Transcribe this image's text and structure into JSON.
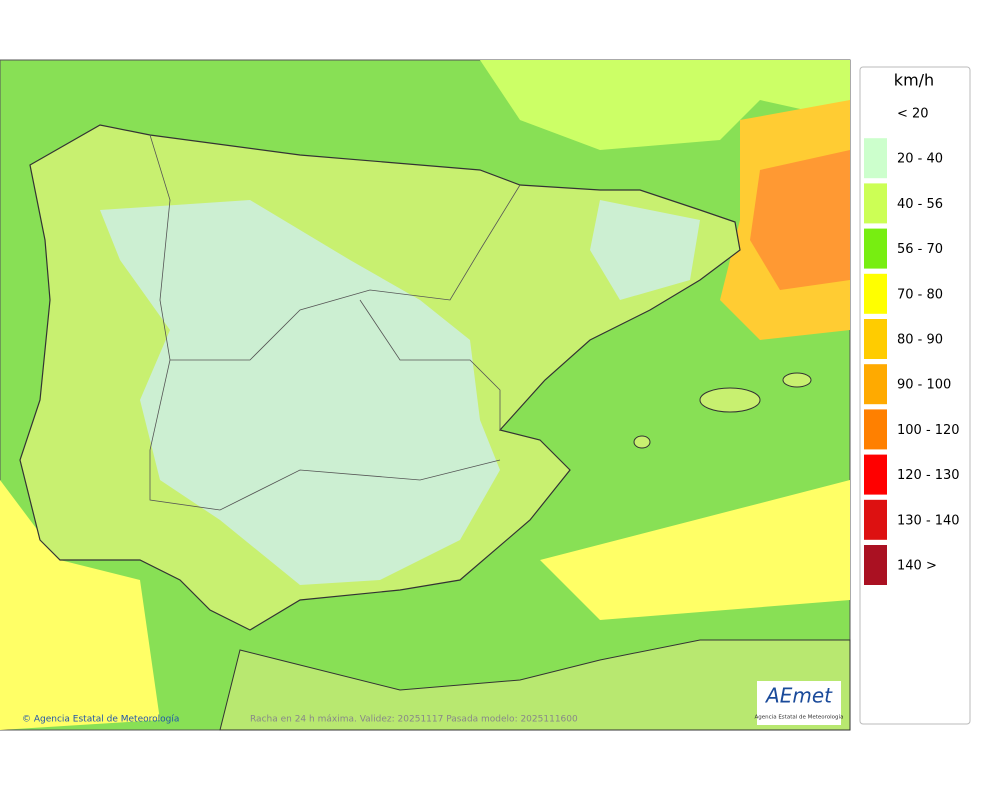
{
  "legend": {
    "title": "km/h",
    "items": [
      {
        "label": "< 20",
        "color": null
      },
      {
        "label": "20 - 40",
        "color": "#ccffcc"
      },
      {
        "label": "40 - 56",
        "color": "#ccff55"
      },
      {
        "label": "56 - 70",
        "color": "#77ee11"
      },
      {
        "label": "70 - 80",
        "color": "#ffff00"
      },
      {
        "label": "80 - 90",
        "color": "#ffcc00"
      },
      {
        "label": "90 - 100",
        "color": "#ffaa00"
      },
      {
        "label": "100 - 120",
        "color": "#ff8000"
      },
      {
        "label": "120 - 130",
        "color": "#ff0000"
      },
      {
        "label": "130 - 140",
        "color": "#dd1111"
      },
      {
        "label": "140 >",
        "color": "#aa1122"
      }
    ]
  },
  "footer": {
    "credit": "© Agencia Estatal de Meteorología",
    "caption": "Racha en 24 h máxima. Validez: 20251117 Pasada modelo: 2025111600"
  },
  "logo": {
    "name": "AEmet",
    "subtitle": "Agencia Estatal de Meteorología"
  }
}
